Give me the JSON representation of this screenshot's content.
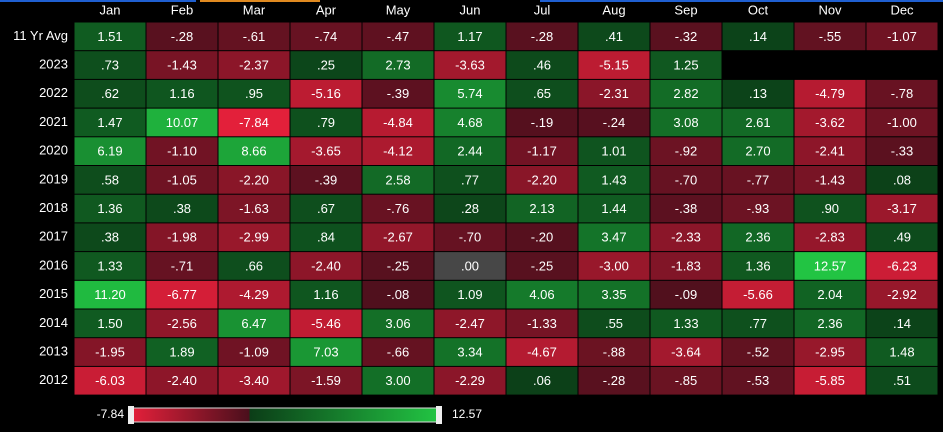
{
  "chart_data": {
    "type": "heatmap",
    "columns": [
      "Jan",
      "Feb",
      "Mar",
      "Apr",
      "May",
      "Jun",
      "Jul",
      "Aug",
      "Sep",
      "Oct",
      "Nov",
      "Dec"
    ],
    "rows": [
      "11 Yr Avg",
      "2023",
      "2022",
      "2021",
      "2020",
      "2019",
      "2018",
      "2017",
      "2016",
      "2015",
      "2014",
      "2013",
      "2012"
    ],
    "values": [
      [
        1.51,
        -0.28,
        -0.61,
        -0.74,
        -0.47,
        1.17,
        -0.28,
        0.41,
        -0.32,
        0.14,
        -0.55,
        -1.07
      ],
      [
        0.73,
        -1.43,
        -2.37,
        0.25,
        2.73,
        -3.63,
        0.46,
        -5.15,
        1.25,
        null,
        null,
        null
      ],
      [
        0.62,
        1.16,
        0.95,
        -5.16,
        -0.39,
        5.74,
        0.65,
        -2.31,
        2.82,
        0.13,
        -4.79,
        -0.78
      ],
      [
        1.47,
        10.07,
        -7.84,
        0.79,
        -4.84,
        4.68,
        -0.19,
        -0.24,
        3.08,
        2.61,
        -3.62,
        -1.0
      ],
      [
        6.19,
        -1.1,
        8.66,
        -3.65,
        -4.12,
        2.44,
        -1.17,
        1.01,
        -0.92,
        2.7,
        -2.41,
        -0.33
      ],
      [
        0.58,
        -1.05,
        -2.2,
        -0.39,
        2.58,
        0.77,
        -2.2,
        1.43,
        -0.7,
        -0.77,
        -1.43,
        0.08
      ],
      [
        1.36,
        0.38,
        -1.63,
        0.67,
        -0.76,
        0.28,
        2.13,
        1.44,
        -0.38,
        -0.93,
        0.9,
        -3.17
      ],
      [
        0.38,
        -1.98,
        -2.99,
        0.84,
        -2.67,
        -0.7,
        -0.2,
        3.47,
        -2.33,
        2.36,
        -2.83,
        0.49
      ],
      [
        1.33,
        -0.71,
        0.66,
        -2.4,
        -0.25,
        0.0,
        -0.25,
        -3.0,
        -1.83,
        1.36,
        12.57,
        -6.23
      ],
      [
        11.2,
        -6.77,
        -4.29,
        1.16,
        -0.08,
        1.09,
        4.06,
        3.35,
        -0.09,
        -5.66,
        2.04,
        -2.92
      ],
      [
        1.5,
        -2.56,
        6.47,
        -5.46,
        3.06,
        -2.47,
        -1.33,
        0.55,
        1.33,
        0.77,
        2.36,
        0.14
      ],
      [
        -1.95,
        1.89,
        -1.09,
        7.03,
        -0.66,
        3.34,
        -4.67,
        -0.88,
        -3.64,
        -0.52,
        -2.95,
        1.48
      ],
      [
        -6.03,
        -2.4,
        -3.4,
        -1.59,
        3.0,
        -2.29,
        0.06,
        -0.28,
        -0.85,
        -0.53,
        -5.85,
        0.51
      ]
    ],
    "value_labels": [
      [
        "1.51",
        "-.28",
        "-.61",
        "-.74",
        "-.47",
        "1.17",
        "-.28",
        ".41",
        "-.32",
        ".14",
        "-.55",
        "-1.07"
      ],
      [
        ".73",
        "-1.43",
        "-2.37",
        ".25",
        "2.73",
        "-3.63",
        ".46",
        "-5.15",
        "1.25",
        null,
        null,
        null
      ],
      [
        ".62",
        "1.16",
        ".95",
        "-5.16",
        "-.39",
        "5.74",
        ".65",
        "-2.31",
        "2.82",
        ".13",
        "-4.79",
        "-.78"
      ],
      [
        "1.47",
        "10.07",
        "-7.84",
        ".79",
        "-4.84",
        "4.68",
        "-.19",
        "-.24",
        "3.08",
        "2.61",
        "-3.62",
        "-1.00"
      ],
      [
        "6.19",
        "-1.10",
        "8.66",
        "-3.65",
        "-4.12",
        "2.44",
        "-1.17",
        "1.01",
        "-.92",
        "2.70",
        "-2.41",
        "-.33"
      ],
      [
        ".58",
        "-1.05",
        "-2.20",
        "-.39",
        "2.58",
        ".77",
        "-2.20",
        "1.43",
        "-.70",
        "-.77",
        "-1.43",
        ".08"
      ],
      [
        "1.36",
        ".38",
        "-1.63",
        ".67",
        "-.76",
        ".28",
        "2.13",
        "1.44",
        "-.38",
        "-.93",
        ".90",
        "-3.17"
      ],
      [
        ".38",
        "-1.98",
        "-2.99",
        ".84",
        "-2.67",
        "-.70",
        "-.20",
        "3.47",
        "-2.33",
        "2.36",
        "-2.83",
        ".49"
      ],
      [
        "1.33",
        "-.71",
        ".66",
        "-2.40",
        "-.25",
        ".00",
        "-.25",
        "-3.00",
        "-1.83",
        "1.36",
        "12.57",
        "-6.23"
      ],
      [
        "11.20",
        "-6.77",
        "-4.29",
        "1.16",
        "-.08",
        "1.09",
        "4.06",
        "3.35",
        "-.09",
        "-5.66",
        "2.04",
        "-2.92"
      ],
      [
        "1.50",
        "-2.56",
        "6.47",
        "-5.46",
        "3.06",
        "-2.47",
        "-1.33",
        ".55",
        "1.33",
        ".77",
        "2.36",
        ".14"
      ],
      [
        "-1.95",
        "1.89",
        "-1.09",
        "7.03",
        "-.66",
        "3.34",
        "-4.67",
        "-.88",
        "-3.64",
        "-.52",
        "-2.95",
        "1.48"
      ],
      [
        "-6.03",
        "-2.40",
        "-3.40",
        "-1.59",
        "3.00",
        "-2.29",
        ".06",
        "-.28",
        "-.85",
        "-.53",
        "-5.85",
        ".51"
      ]
    ],
    "colorbar": {
      "min": -7.84,
      "max": 12.57
    },
    "colors": {
      "negative": "#e3203a",
      "negative_dark": "#4a0f1c",
      "positive": "#22c443",
      "positive_dark": "#0b3d17",
      "zero": "#474747"
    }
  }
}
